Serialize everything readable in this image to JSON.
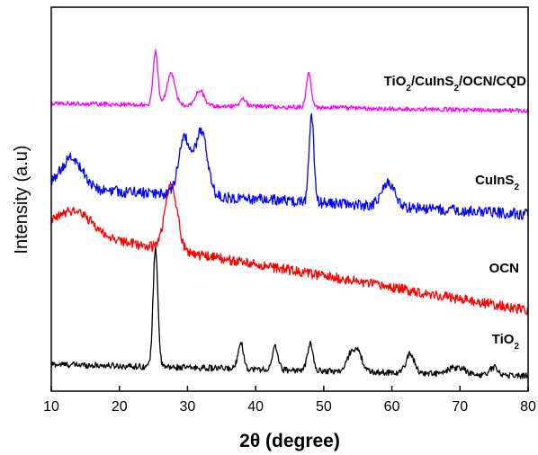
{
  "chart_data": {
    "type": "line",
    "xlabel": "2θ (degree)",
    "ylabel": "Intensity (a.u)",
    "xlim": [
      10,
      80
    ],
    "ylim": [
      0,
      100
    ],
    "xticks": [
      "10",
      "20",
      "30",
      "40",
      "50",
      "60",
      "70",
      "80"
    ],
    "grid": false,
    "y_tick_labels_shown": false,
    "series": [
      {
        "name": "TiO2",
        "color": "#000000",
        "baseline": 6,
        "start": 7,
        "end": 4,
        "noise": 0.8,
        "peaks": [
          {
            "x": 25.3,
            "h": 31,
            "w": 0.35
          },
          {
            "x": 37.8,
            "h": 7,
            "w": 0.4
          },
          {
            "x": 42.9,
            "h": 6,
            "w": 0.4
          },
          {
            "x": 48.0,
            "h": 7,
            "w": 0.4
          },
          {
            "x": 54.0,
            "h": 4.5,
            "w": 0.6
          },
          {
            "x": 55.1,
            "h": 4.5,
            "w": 0.6
          },
          {
            "x": 62.7,
            "h": 5,
            "w": 0.6
          },
          {
            "x": 68.8,
            "h": 1.5,
            "w": 0.6
          },
          {
            "x": 70.3,
            "h": 1.5,
            "w": 0.6
          },
          {
            "x": 75.0,
            "h": 2,
            "w": 0.6
          }
        ],
        "label_main": "TiO",
        "label_sub": "2",
        "label_rest": ""
      },
      {
        "name": "OCN",
        "color": "#ff0000",
        "baseline": 30,
        "start": 42,
        "end": 21,
        "noise": 1.3,
        "peaks": [
          {
            "x": 13.5,
            "h": 6,
            "w": 2.5
          },
          {
            "x": 27.6,
            "h": 17,
            "w": 0.9
          }
        ],
        "label_main": "OCN",
        "label_sub": "",
        "label_rest": ""
      },
      {
        "name": "CuInS2",
        "color": "#0000ff",
        "baseline": 50,
        "start": 53,
        "end": 46,
        "noise": 1.4,
        "peaks": [
          {
            "x": 13.0,
            "h": 8,
            "w": 1.6
          },
          {
            "x": 29.5,
            "h": 15,
            "w": 0.8
          },
          {
            "x": 32.0,
            "h": 17,
            "w": 0.9
          },
          {
            "x": 48.2,
            "h": 23,
            "w": 0.35
          },
          {
            "x": 59.5,
            "h": 6,
            "w": 1.0
          }
        ],
        "label_main": "CuInS",
        "label_sub": "2",
        "label_rest": ""
      },
      {
        "name": "TiO2/CuInS2/OCN/CQD",
        "color": "#ff00ff",
        "baseline": 74,
        "start": 75,
        "end": 73,
        "noise": 0.6,
        "peaks": [
          {
            "x": 25.3,
            "h": 14,
            "w": 0.35
          },
          {
            "x": 27.6,
            "h": 8,
            "w": 0.6
          },
          {
            "x": 31.8,
            "h": 4,
            "w": 0.6
          },
          {
            "x": 38.2,
            "h": 2,
            "w": 0.4
          },
          {
            "x": 47.8,
            "h": 9,
            "w": 0.35
          }
        ],
        "label_main": "TiO",
        "label_sub": "2",
        "label_rest": "/CuInS2/OCN/CQD"
      }
    ]
  }
}
